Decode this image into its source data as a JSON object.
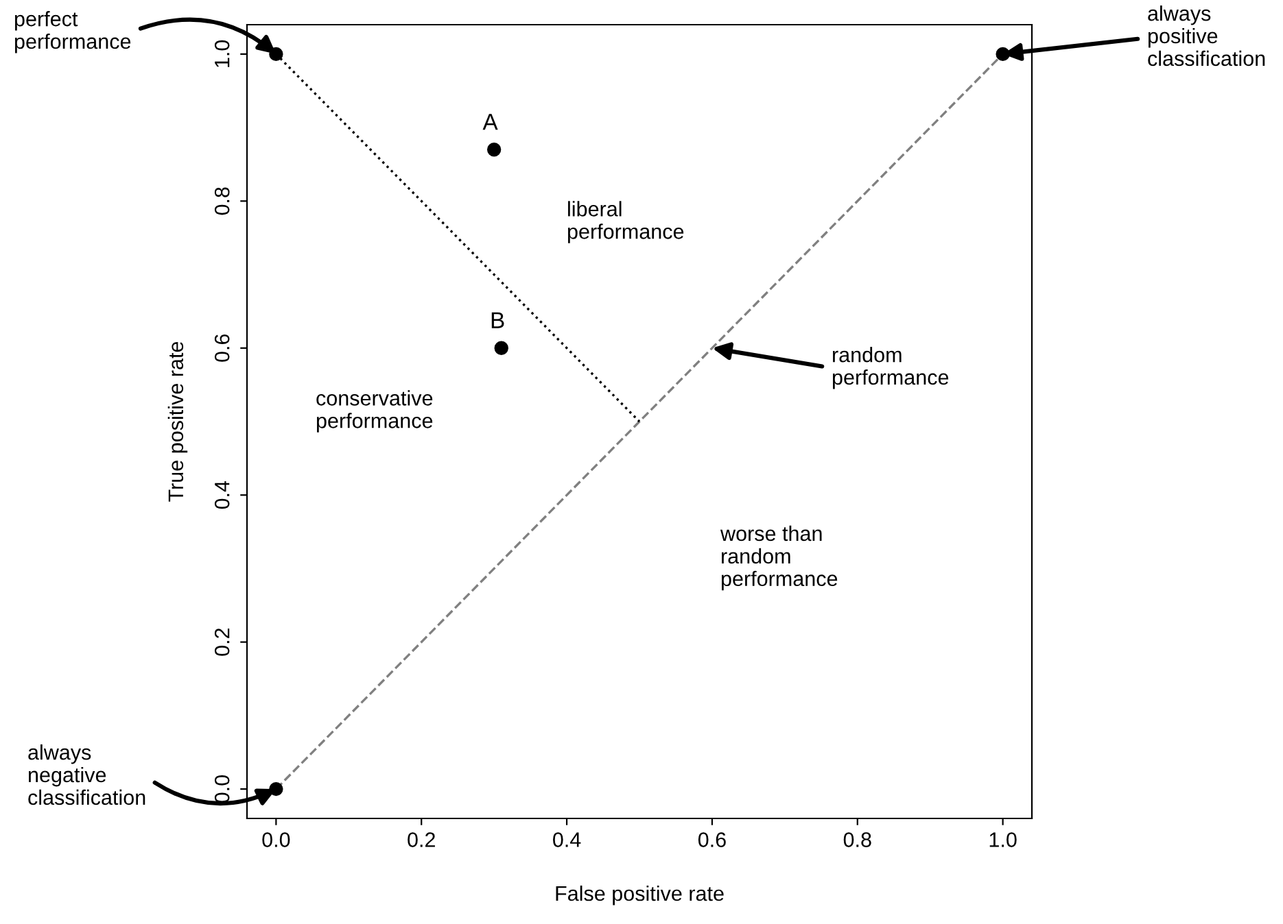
{
  "chart_data": {
    "type": "scatter",
    "xlabel": "False positive rate",
    "ylabel": "True positive rate",
    "xlim": [
      -0.04,
      1.04
    ],
    "ylim": [
      -0.04,
      1.04
    ],
    "xticks": [
      {
        "value": 0,
        "label": "0.0"
      },
      0.2,
      0.4,
      0.6,
      0.8,
      {
        "value": 1,
        "label": "1.0"
      }
    ],
    "yticks": [
      {
        "value": 0,
        "label": "0.0"
      },
      0.2,
      0.4,
      0.6,
      0.8,
      {
        "value": 1,
        "label": "1.0"
      }
    ],
    "grid": false,
    "legend": false,
    "series": [
      {
        "type": "line",
        "color": "#808080",
        "line_style": "dashed",
        "marker": "none",
        "x": [
          0,
          1
        ],
        "values": [
          0,
          1
        ]
      },
      {
        "type": "line",
        "color": "#000000",
        "line_style": "dotted",
        "marker": "none",
        "x": [
          0,
          0.5
        ],
        "values": [
          1,
          0.5
        ]
      },
      {
        "color": "#000000",
        "marker": "circle",
        "x": [
          0,
          1,
          0,
          0.3,
          0.31
        ],
        "values": [
          1,
          1,
          0,
          0.87,
          0.6
        ]
      }
    ],
    "annotations": [
      {
        "text": "perfect\nperformance",
        "x": 0,
        "y": 1
      },
      {
        "text": "always\npositive\nclassification",
        "x": 1,
        "y": 1
      },
      {
        "text": "random\nperformance",
        "x": 0.6,
        "y": 0.6
      },
      {
        "text": "always\nnegative\nclassification",
        "x": 0,
        "y": 0
      },
      "liberal\nperformance",
      "conservative\nperformance",
      "worse than\nrandom\nperformance",
      {
        "text": "A",
        "x": 0.3,
        "y": 0.87
      },
      {
        "text": "B",
        "x": 0.31,
        "y": 0.6
      }
    ]
  }
}
